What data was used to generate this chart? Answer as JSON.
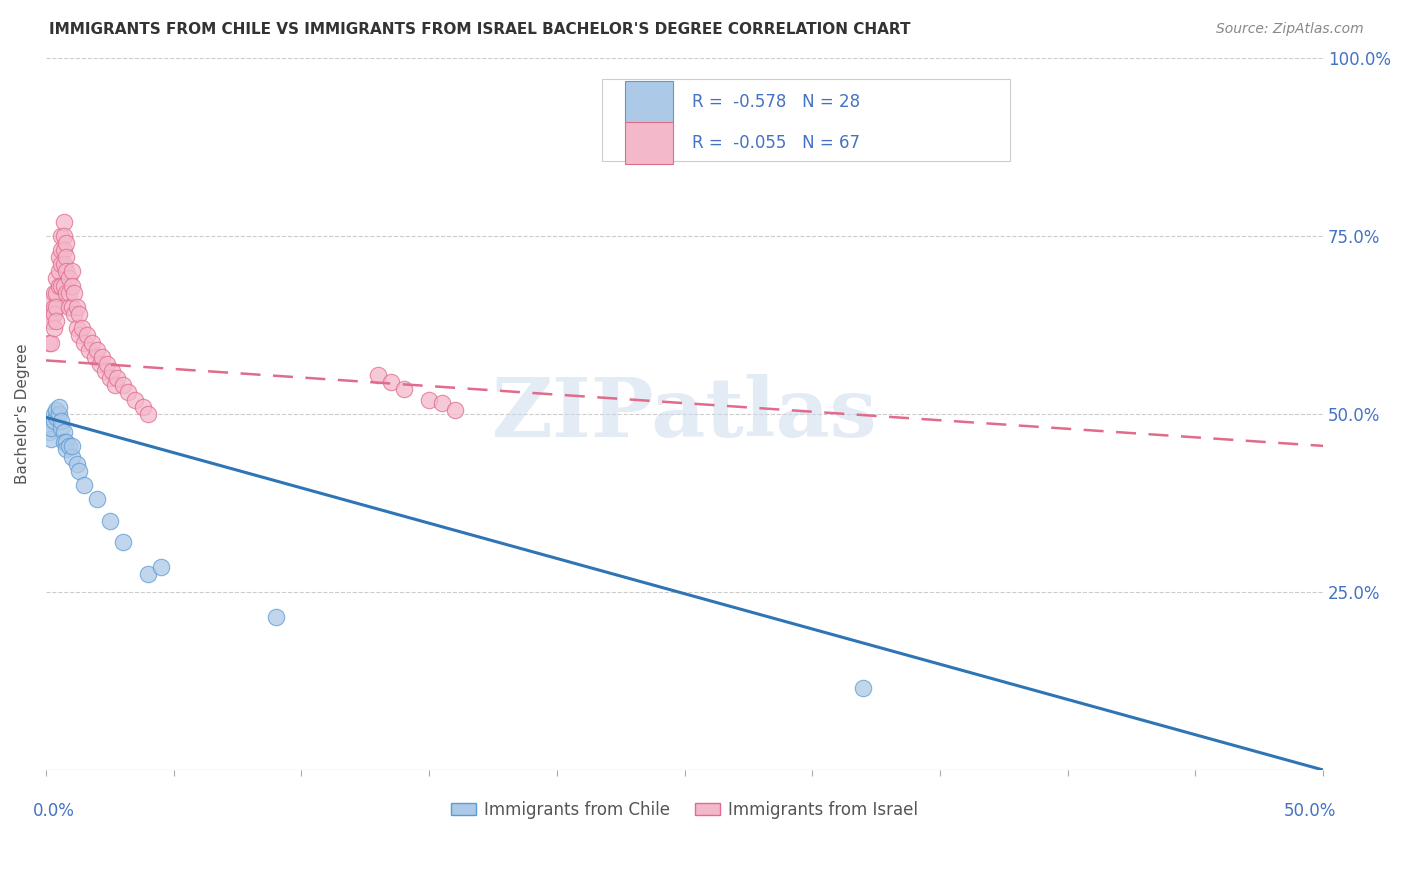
{
  "title": "IMMIGRANTS FROM CHILE VS IMMIGRANTS FROM ISRAEL BACHELOR'S DEGREE CORRELATION CHART",
  "source": "Source: ZipAtlas.com",
  "ylabel": "Bachelor's Degree",
  "xlim": [
    0.0,
    0.5
  ],
  "ylim": [
    0.0,
    1.0
  ],
  "watermark": "ZIPatlas",
  "legend": {
    "chile_label": "Immigrants from Chile",
    "israel_label": "Immigrants from Israel",
    "chile_R": "-0.578",
    "chile_N": "28",
    "israel_R": "-0.055",
    "israel_N": "67"
  },
  "chile_color": "#adc9e8",
  "chile_edge": "#5b9bd5",
  "israel_color": "#f4b8cb",
  "israel_edge": "#e06b8b",
  "trend_chile_color": "#2e75b6",
  "trend_israel_color": "#e06b8b",
  "chile_trend_x0": 0.0,
  "chile_trend_y0": 0.495,
  "chile_trend_x1": 0.5,
  "chile_trend_y1": 0.0,
  "israel_trend_x0": 0.0,
  "israel_trend_y0": 0.575,
  "israel_trend_x1": 0.5,
  "israel_trend_y1": 0.455,
  "chile_points_x": [
    0.001,
    0.002,
    0.002,
    0.003,
    0.003,
    0.004,
    0.004,
    0.005,
    0.005,
    0.006,
    0.006,
    0.007,
    0.007,
    0.008,
    0.008,
    0.009,
    0.01,
    0.01,
    0.012,
    0.013,
    0.015,
    0.02,
    0.025,
    0.03,
    0.04,
    0.045,
    0.09,
    0.32
  ],
  "chile_points_y": [
    0.475,
    0.465,
    0.48,
    0.5,
    0.49,
    0.495,
    0.505,
    0.5,
    0.51,
    0.48,
    0.49,
    0.475,
    0.46,
    0.46,
    0.45,
    0.455,
    0.44,
    0.455,
    0.43,
    0.42,
    0.4,
    0.38,
    0.35,
    0.32,
    0.275,
    0.285,
    0.215,
    0.115
  ],
  "israel_points_x": [
    0.001,
    0.001,
    0.002,
    0.002,
    0.002,
    0.003,
    0.003,
    0.003,
    0.003,
    0.004,
    0.004,
    0.004,
    0.004,
    0.005,
    0.005,
    0.005,
    0.006,
    0.006,
    0.006,
    0.006,
    0.007,
    0.007,
    0.007,
    0.007,
    0.007,
    0.008,
    0.008,
    0.008,
    0.008,
    0.009,
    0.009,
    0.009,
    0.01,
    0.01,
    0.01,
    0.011,
    0.011,
    0.012,
    0.012,
    0.013,
    0.013,
    0.014,
    0.015,
    0.016,
    0.017,
    0.018,
    0.019,
    0.02,
    0.021,
    0.022,
    0.023,
    0.024,
    0.025,
    0.026,
    0.027,
    0.028,
    0.03,
    0.032,
    0.035,
    0.038,
    0.04,
    0.13,
    0.135,
    0.14,
    0.15,
    0.155,
    0.16
  ],
  "israel_points_y": [
    0.64,
    0.6,
    0.66,
    0.63,
    0.6,
    0.67,
    0.65,
    0.64,
    0.62,
    0.69,
    0.67,
    0.65,
    0.63,
    0.72,
    0.7,
    0.68,
    0.75,
    0.73,
    0.71,
    0.68,
    0.77,
    0.75,
    0.73,
    0.71,
    0.68,
    0.74,
    0.72,
    0.7,
    0.67,
    0.69,
    0.67,
    0.65,
    0.7,
    0.68,
    0.65,
    0.67,
    0.64,
    0.65,
    0.62,
    0.64,
    0.61,
    0.62,
    0.6,
    0.61,
    0.59,
    0.6,
    0.58,
    0.59,
    0.57,
    0.58,
    0.56,
    0.57,
    0.55,
    0.56,
    0.54,
    0.55,
    0.54,
    0.53,
    0.52,
    0.51,
    0.5,
    0.555,
    0.545,
    0.535,
    0.52,
    0.515,
    0.505
  ]
}
